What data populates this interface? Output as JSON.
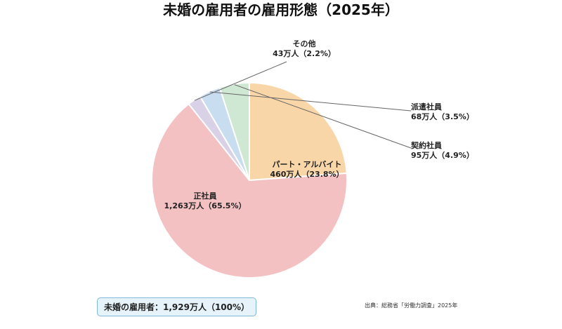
{
  "chart_data": {
    "type": "pie",
    "title": "未婚の雇用者の雇用形態（2025年）",
    "start_angle_deg": 0,
    "direction": "clockwise",
    "slices": [
      {
        "name": "パート・アルバイト",
        "value": 460,
        "value_label": "460万人（23.8%）",
        "percent": 23.8,
        "color": "#f8d6a8"
      },
      {
        "name": "正社員",
        "value": 1263,
        "value_label": "1,263万人（65.5%）",
        "percent": 65.5,
        "color": "#f4c1c3"
      },
      {
        "name": "その他",
        "value": 43,
        "value_label": "43万人（2.2%）",
        "percent": 2.2,
        "color": "#d9d2e6"
      },
      {
        "name": "派遣社員",
        "value": 68,
        "value_label": "68万人（3.5%）",
        "percent": 3.5,
        "color": "#c9ddf0"
      },
      {
        "name": "契約社員",
        "value": 95,
        "value_label": "95万人（4.9%）",
        "percent": 4.9,
        "color": "#cfe8d3"
      }
    ],
    "total_label": "未婚の雇用者：1,929万人（100%）",
    "source": "出典：総務省「労働力調査」2025年"
  }
}
